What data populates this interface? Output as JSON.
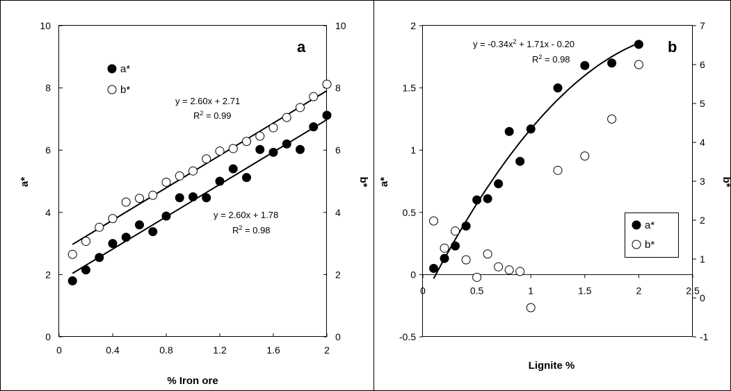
{
  "chart_data": [
    {
      "type": "scatter",
      "panel_label": "a",
      "xlabel": "% Iron ore",
      "ylabel_left": "a*",
      "ylabel_right": "b*",
      "xlim": [
        0,
        2
      ],
      "ylim_left": [
        0,
        10
      ],
      "ylim_right": [
        0,
        10
      ],
      "x_ticks": [
        "0",
        "0.4",
        "0.8",
        "1.2",
        "1.6",
        "2"
      ],
      "y_ticks_left": [
        "0",
        "2",
        "4",
        "6",
        "8",
        "10"
      ],
      "y_ticks_right": [
        "0",
        "2",
        "4",
        "6",
        "8",
        "10"
      ],
      "legend": [
        "a*",
        "b*"
      ],
      "legend_position": "top-left",
      "series": [
        {
          "name": "a*",
          "marker": "filled-circle",
          "axis": "left",
          "x": [
            0.1,
            0.2,
            0.3,
            0.4,
            0.5,
            0.6,
            0.7,
            0.8,
            0.9,
            1.0,
            1.1,
            1.2,
            1.3,
            1.4,
            1.5,
            1.6,
            1.7,
            1.8,
            1.9,
            2.0
          ],
          "y": [
            1.8,
            2.15,
            2.55,
            3.0,
            3.2,
            3.6,
            3.38,
            3.88,
            4.47,
            4.5,
            4.47,
            5.0,
            5.4,
            5.12,
            6.02,
            5.93,
            6.2,
            6.02,
            6.75,
            7.12
          ]
        },
        {
          "name": "b*",
          "marker": "open-circle",
          "axis": "right",
          "x": [
            0.1,
            0.2,
            0.3,
            0.4,
            0.5,
            0.6,
            0.7,
            0.8,
            0.9,
            1.0,
            1.1,
            1.2,
            1.3,
            1.4,
            1.5,
            1.6,
            1.7,
            1.8,
            1.9,
            2.0
          ],
          "y": [
            2.65,
            3.07,
            3.52,
            3.8,
            4.33,
            4.45,
            4.55,
            4.97,
            5.17,
            5.33,
            5.72,
            5.97,
            6.05,
            6.28,
            6.45,
            6.72,
            7.05,
            7.37,
            7.72,
            8.12
          ]
        }
      ],
      "fits": [
        {
          "slope": 2.6,
          "intercept": 2.71,
          "x_range": [
            0.1,
            2.0
          ],
          "equation": "y = 2.60x + 2.71",
          "r2_label": "R",
          "r2_value": "2",
          "r2_text": " = 0.99"
        },
        {
          "slope": 2.6,
          "intercept": 1.78,
          "x_range": [
            0.1,
            2.0
          ],
          "equation": "y = 2.60x + 1.78",
          "r2_label": "R",
          "r2_value": "2",
          "r2_text": " = 0.98"
        }
      ]
    },
    {
      "type": "scatter",
      "panel_label": "b",
      "xlabel": "Lignite %",
      "ylabel_left": "a*",
      "ylabel_right": "b*",
      "xlim": [
        0,
        2.5
      ],
      "ylim_left": [
        -0.5,
        2
      ],
      "ylim_right": [
        -1,
        7
      ],
      "x_axis_crosses_at_left": 0,
      "x_ticks": [
        "0",
        "0.5",
        "1",
        "1.5",
        "2",
        "2.5"
      ],
      "y_ticks_left": [
        "-0.5",
        "0",
        "0.5",
        "1",
        "1.5",
        "2"
      ],
      "y_ticks_right": [
        "-1",
        "0",
        "1",
        "2",
        "3",
        "4",
        "5",
        "6",
        "7"
      ],
      "legend": [
        "a*",
        "b*"
      ],
      "legend_position": "bottom-right",
      "series": [
        {
          "name": "a*",
          "marker": "filled-circle",
          "axis": "left",
          "x": [
            0.1,
            0.2,
            0.3,
            0.4,
            0.5,
            0.6,
            0.7,
            0.8,
            0.9,
            1.0,
            1.25,
            1.5,
            1.75,
            2.0
          ],
          "y": [
            0.05,
            0.13,
            0.23,
            0.39,
            0.6,
            0.61,
            0.73,
            1.15,
            0.91,
            1.17,
            1.5,
            1.68,
            1.7,
            1.85
          ]
        },
        {
          "name": "b*",
          "marker": "open-circle",
          "axis": "right",
          "x": [
            0.1,
            0.2,
            0.3,
            0.4,
            0.5,
            0.6,
            0.7,
            0.8,
            0.9,
            1.0,
            1.25,
            1.5,
            1.75,
            2.0
          ],
          "y": [
            1.98,
            1.28,
            1.72,
            0.98,
            0.53,
            1.13,
            0.8,
            0.72,
            0.68,
            -0.25,
            3.28,
            3.65,
            4.6,
            6.0
          ]
        }
      ],
      "fits": [
        {
          "a": -0.34,
          "b": 1.71,
          "c": -0.2,
          "x_range": [
            0.1,
            2.0
          ],
          "equation_prefix": "y = -0.34x",
          "equation_exp": "2",
          "equation_suffix": " + 1.71x - 0.20",
          "r2_label": "R",
          "r2_value": "2",
          "r2_text": " = 0.98"
        }
      ]
    }
  ]
}
